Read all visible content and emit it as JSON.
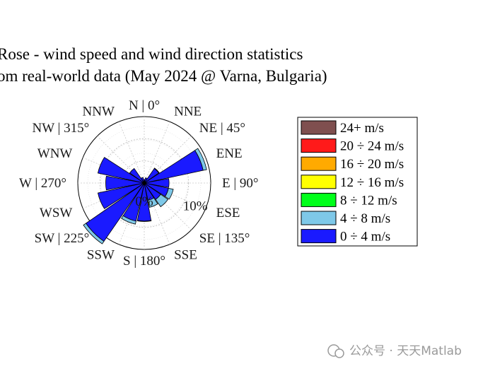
{
  "chart_data": {
    "type": "windrose",
    "title_lines": [
      "Rose - wind speed and wind direction statistics",
      "om real-world data (May 2024 @ Varna, Bulgaria)"
    ],
    "direction_labels": [
      "N | 0°",
      "NNE",
      "NE | 45°",
      "ENE",
      "E | 90°",
      "ESE",
      "SE | 135°",
      "SSE",
      "S | 180°",
      "SSW",
      "SW | 225°",
      "WSW",
      "W | 270°",
      "WNW",
      "NW | 315°",
      "NNW"
    ],
    "ring_labels": [
      "0%",
      "10%"
    ],
    "rmax_percent": 15,
    "legend": [
      {
        "label": "24+ m/s",
        "color": "#7f4f4f"
      },
      {
        "label": "20 ÷ 24 m/s",
        "color": "#ff1a1a"
      },
      {
        "label": "16 ÷ 20 m/s",
        "color": "#ffaa00"
      },
      {
        "label": "12 ÷ 16 m/s",
        "color": "#ffff00"
      },
      {
        "label": "8 ÷ 12 m/s",
        "color": "#00ff1a"
      },
      {
        "label": "4 ÷ 8 m/s",
        "color": "#7ec8e8"
      },
      {
        "label": "0 ÷ 4 m/s",
        "color": "#1a1aff"
      }
    ],
    "series": [
      {
        "name": "0 ÷ 4 m/s",
        "color": "#1a1aff",
        "values": [
          0.8,
          1.2,
          4.0,
          13.6,
          5.6,
          5.6,
          4.5,
          4.0,
          8.6,
          8.8,
          16.0,
          10.7,
          8.7,
          10.7,
          4.0,
          1.3
        ]
      },
      {
        "name": "4 ÷ 8 m/s",
        "color": "#7ec8e8",
        "values": [
          0.0,
          0.0,
          0.1,
          0.8,
          0.0,
          1.1,
          2.0,
          1.6,
          0.1,
          0.7,
          0.7,
          0.0,
          0.0,
          0.0,
          0.0,
          0.0
        ]
      }
    ]
  },
  "watermark": "公众号 · 天天Matlab"
}
